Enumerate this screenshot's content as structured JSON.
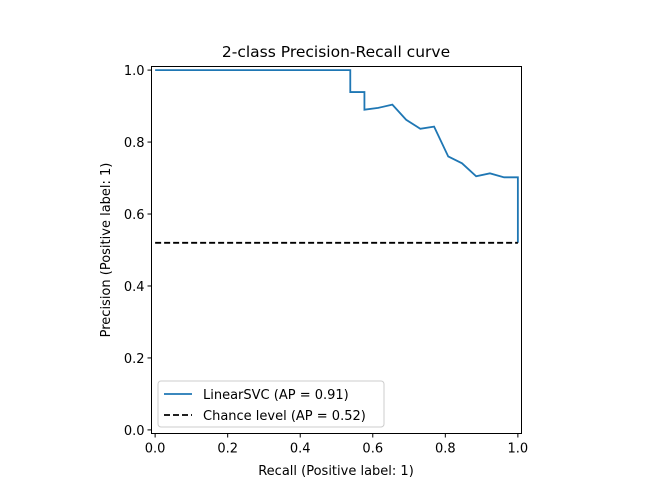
{
  "chart_data": {
    "type": "line",
    "title": "2-class Precision-Recall curve",
    "xlabel": "Recall (Positive label: 1)",
    "ylabel": "Precision (Positive label: 1)",
    "xlim": [
      -0.01,
      1.01
    ],
    "ylim": [
      -0.01,
      1.01
    ],
    "xticks": [
      0.0,
      0.2,
      0.4,
      0.6,
      0.8,
      1.0
    ],
    "xtick_labels": [
      "0.0",
      "0.2",
      "0.4",
      "0.6",
      "0.8",
      "1.0"
    ],
    "yticks": [
      0.0,
      0.2,
      0.4,
      0.6,
      0.8,
      1.0
    ],
    "ytick_labels": [
      "0.0",
      "0.2",
      "0.4",
      "0.6",
      "0.8",
      "1.0"
    ],
    "grid": false,
    "legend_position": "lower-left",
    "series": [
      {
        "name": "LinearSVC (AP = 0.91)",
        "color": "#1f77b4",
        "style": "solid",
        "drawstyle": "steps-post",
        "recall": [
          0.0,
          0.538,
          0.538,
          0.577,
          0.577,
          0.615,
          0.654,
          0.692,
          0.731,
          0.769,
          0.808,
          0.846,
          0.885,
          0.923,
          0.962,
          1.0,
          1.0
        ],
        "precision": [
          1.0,
          1.0,
          0.939,
          0.939,
          0.89,
          0.895,
          0.904,
          0.862,
          0.837,
          0.843,
          0.76,
          0.741,
          0.705,
          0.713,
          0.702,
          0.702,
          0.52
        ],
        "step_points": [
          {
            "recall": 0.0,
            "precision": 1.0
          },
          {
            "recall": 0.538,
            "precision": 0.939
          },
          {
            "recall": 0.577,
            "precision": 0.89
          },
          {
            "recall": 0.615,
            "precision": 0.895
          },
          {
            "recall": 0.654,
            "precision": 0.904
          },
          {
            "recall": 0.692,
            "precision": 0.862
          },
          {
            "recall": 0.731,
            "precision": 0.837
          },
          {
            "recall": 0.769,
            "precision": 0.843
          },
          {
            "recall": 0.808,
            "precision": 0.76
          },
          {
            "recall": 0.846,
            "precision": 0.741
          },
          {
            "recall": 0.885,
            "precision": 0.705
          },
          {
            "recall": 0.923,
            "precision": 0.713
          },
          {
            "recall": 0.962,
            "precision": 0.702
          },
          {
            "recall": 1.0,
            "precision": 0.52
          }
        ]
      },
      {
        "name": "Chance level (AP = 0.52)",
        "color": "#000000",
        "style": "dashed",
        "recall": [
          0.0,
          1.0
        ],
        "precision": [
          0.52,
          0.52
        ]
      }
    ]
  }
}
